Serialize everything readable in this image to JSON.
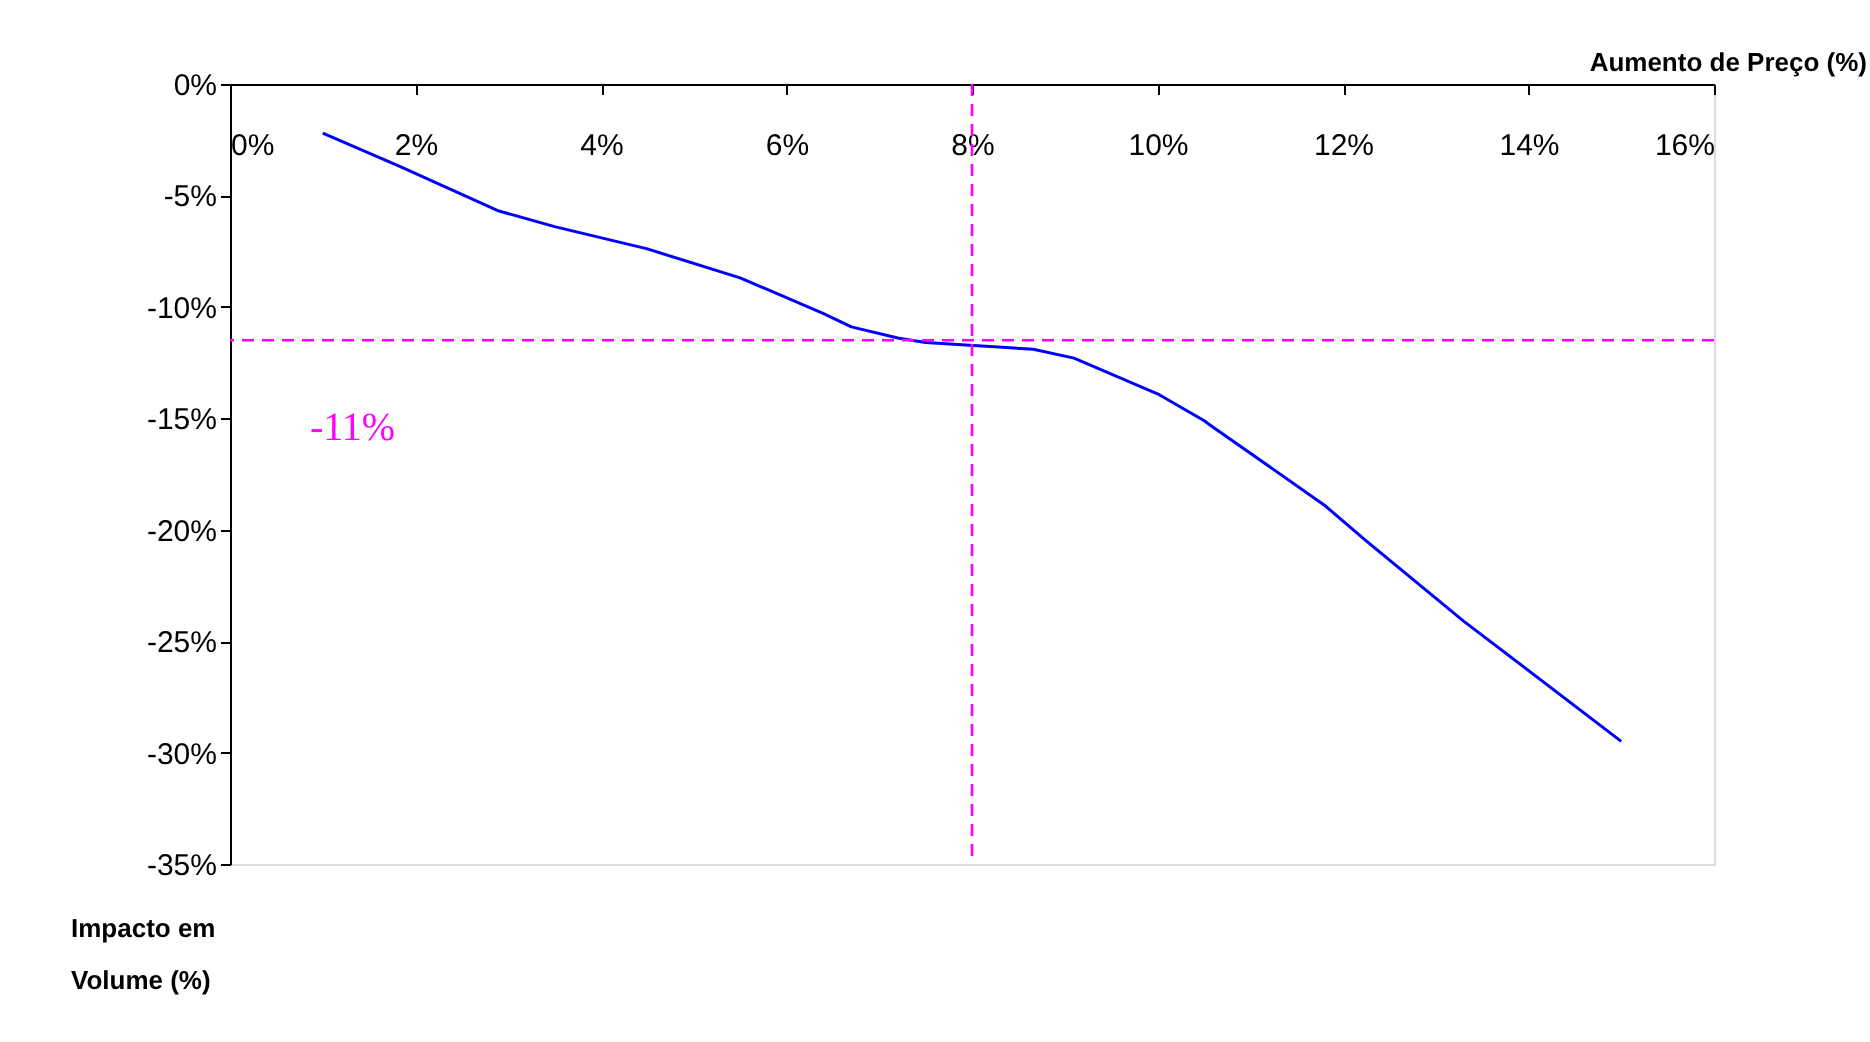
{
  "chart_data": {
    "type": "line",
    "xlabel": "Aumento de Preço (%)",
    "ylabel": "Impacto em\nVolume (%)",
    "x": [
      1.0,
      1.83,
      2.9,
      3.5,
      4.5,
      5.5,
      6.4,
      6.7,
      7.2,
      7.5,
      8.66,
      9.1,
      10.0,
      10.5,
      10.6,
      11.8,
      12.25,
      13.3,
      15.0
    ],
    "series": [
      {
        "color": "#0000ff",
        "values": [
          -2.2,
          -3.7,
          -5.7,
          -6.4,
          -7.4,
          -8.7,
          -10.3,
          -10.9,
          -11.4,
          -11.6,
          -11.9,
          -12.3,
          -13.9,
          -15.1,
          -15.4,
          -18.9,
          -20.5,
          -24.1,
          -29.5
        ]
      }
    ],
    "xlim": [
      0,
      16
    ],
    "xticks": [
      {
        "value": 0,
        "label": "0%"
      },
      {
        "value": 2,
        "label": "2%"
      },
      {
        "value": 4,
        "label": "4%"
      },
      {
        "value": 6,
        "label": "6%"
      },
      {
        "value": 8,
        "label": "8%"
      },
      {
        "value": 10,
        "label": "10%"
      },
      {
        "value": 12,
        "label": "12%"
      },
      {
        "value": 14,
        "label": "14%"
      },
      {
        "value": 16,
        "label": "16%"
      }
    ],
    "ylim": [
      -35,
      0
    ],
    "yticks": [
      {
        "value": 0,
        "label": "0%"
      },
      {
        "value": -5,
        "label": "-5%"
      },
      {
        "value": -10,
        "label": "-10%"
      },
      {
        "value": -15,
        "label": "-15%"
      },
      {
        "value": -20,
        "label": "-20%"
      },
      {
        "value": -25,
        "label": "-25%"
      },
      {
        "value": -30,
        "label": "-30%"
      },
      {
        "value": -35,
        "label": "-35%"
      }
    ],
    "ref_lines": [
      {
        "axis": "y",
        "value": -11.5,
        "color": "#ff00ff",
        "line_style": "dashed"
      },
      {
        "axis": "x",
        "value": 8,
        "color": "#ff00ff",
        "line_style": "dashed"
      }
    ],
    "annotations": [
      {
        "text": "-11%",
        "x": 0,
        "y": -11.5
      }
    ],
    "grid": false,
    "marker": "none",
    "line_style": "solid"
  }
}
